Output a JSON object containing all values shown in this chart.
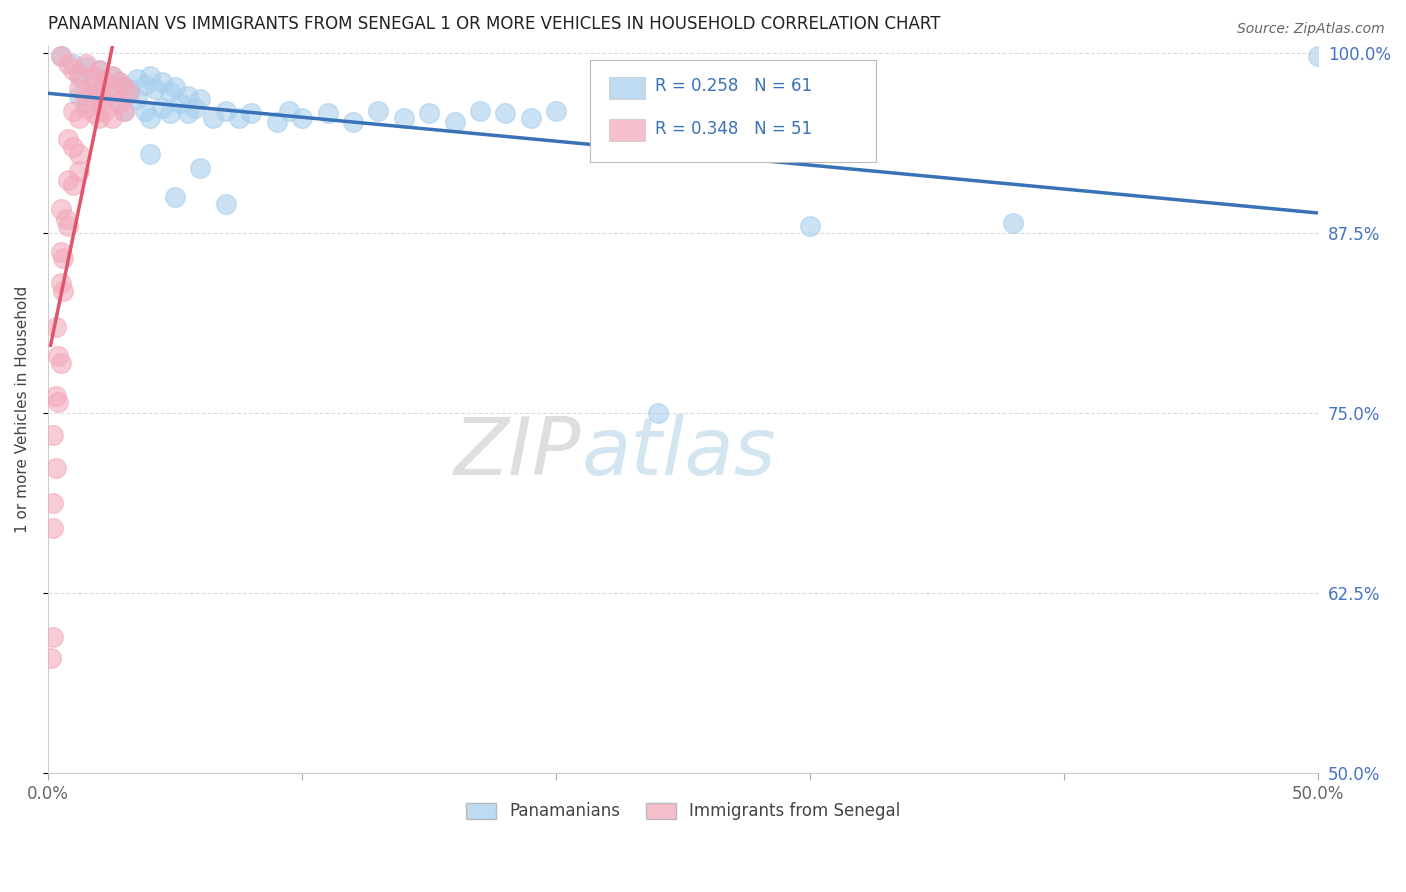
{
  "title": "PANAMANIAN VS IMMIGRANTS FROM SENEGAL 1 OR MORE VEHICLES IN HOUSEHOLD CORRELATION CHART",
  "source": "Source: ZipAtlas.com",
  "ylabel": "1 or more Vehicles in Household",
  "xmin": 0.0,
  "xmax": 0.5,
  "ymin": 0.5,
  "ymax": 1.005,
  "xticks": [
    0.0,
    0.1,
    0.2,
    0.3,
    0.4,
    0.5
  ],
  "xtick_labels": [
    "0.0%",
    "",
    "",
    "",
    "",
    "50.0%"
  ],
  "ytick_labels_right": [
    "100.0%",
    "87.5%",
    "75.0%",
    "62.5%",
    "50.0%"
  ],
  "yticks_right": [
    1.0,
    0.875,
    0.75,
    0.625,
    0.5
  ],
  "legend_blue_r": "R = 0.258",
  "legend_blue_n": "N = 61",
  "legend_pink_r": "R = 0.348",
  "legend_pink_n": "N = 51",
  "legend_label_blue": "Panamanians",
  "legend_label_pink": "Immigrants from Senegal",
  "blue_color": "#A8CFEE",
  "pink_color": "#F4AABB",
  "trendline_blue_color": "#3A72B8",
  "trendline_pink_color": "#E0556A",
  "watermark_zip": "ZIP",
  "watermark_atlas": "atlas",
  "blue_scatter": [
    [
      0.005,
      0.998
    ],
    [
      0.01,
      0.992
    ],
    [
      0.012,
      0.985
    ],
    [
      0.015,
      0.99
    ],
    [
      0.018,
      0.982
    ],
    [
      0.02,
      0.988
    ],
    [
      0.022,
      0.978
    ],
    [
      0.025,
      0.984
    ],
    [
      0.028,
      0.98
    ],
    [
      0.03,
      0.976
    ],
    [
      0.032,
      0.975
    ],
    [
      0.035,
      0.982
    ],
    [
      0.038,
      0.978
    ],
    [
      0.04,
      0.984
    ],
    [
      0.042,
      0.975
    ],
    [
      0.045,
      0.98
    ],
    [
      0.048,
      0.973
    ],
    [
      0.05,
      0.976
    ],
    [
      0.055,
      0.97
    ],
    [
      0.06,
      0.968
    ],
    [
      0.012,
      0.97
    ],
    [
      0.015,
      0.965
    ],
    [
      0.018,
      0.972
    ],
    [
      0.02,
      0.968
    ],
    [
      0.025,
      0.975
    ],
    [
      0.028,
      0.965
    ],
    [
      0.03,
      0.96
    ],
    [
      0.032,
      0.972
    ],
    [
      0.035,
      0.968
    ],
    [
      0.038,
      0.96
    ],
    [
      0.04,
      0.955
    ],
    [
      0.045,
      0.962
    ],
    [
      0.048,
      0.958
    ],
    [
      0.052,
      0.965
    ],
    [
      0.055,
      0.958
    ],
    [
      0.058,
      0.962
    ],
    [
      0.065,
      0.955
    ],
    [
      0.07,
      0.96
    ],
    [
      0.075,
      0.955
    ],
    [
      0.08,
      0.958
    ],
    [
      0.09,
      0.952
    ],
    [
      0.095,
      0.96
    ],
    [
      0.1,
      0.955
    ],
    [
      0.11,
      0.958
    ],
    [
      0.12,
      0.952
    ],
    [
      0.13,
      0.96
    ],
    [
      0.14,
      0.955
    ],
    [
      0.15,
      0.958
    ],
    [
      0.16,
      0.952
    ],
    [
      0.17,
      0.96
    ],
    [
      0.18,
      0.958
    ],
    [
      0.19,
      0.955
    ],
    [
      0.2,
      0.96
    ],
    [
      0.04,
      0.93
    ],
    [
      0.06,
      0.92
    ],
    [
      0.05,
      0.9
    ],
    [
      0.07,
      0.895
    ],
    [
      0.3,
      0.88
    ],
    [
      0.38,
      0.882
    ],
    [
      0.24,
      0.75
    ],
    [
      0.5,
      0.998
    ]
  ],
  "pink_scatter": [
    [
      0.005,
      0.998
    ],
    [
      0.008,
      0.992
    ],
    [
      0.01,
      0.988
    ],
    [
      0.012,
      0.984
    ],
    [
      0.015,
      0.992
    ],
    [
      0.018,
      0.984
    ],
    [
      0.02,
      0.988
    ],
    [
      0.022,
      0.98
    ],
    [
      0.025,
      0.984
    ],
    [
      0.028,
      0.98
    ],
    [
      0.03,
      0.976
    ],
    [
      0.032,
      0.972
    ],
    [
      0.012,
      0.975
    ],
    [
      0.015,
      0.97
    ],
    [
      0.018,
      0.976
    ],
    [
      0.02,
      0.972
    ],
    [
      0.022,
      0.968
    ],
    [
      0.025,
      0.972
    ],
    [
      0.028,
      0.965
    ],
    [
      0.03,
      0.96
    ],
    [
      0.01,
      0.96
    ],
    [
      0.012,
      0.955
    ],
    [
      0.015,
      0.962
    ],
    [
      0.018,
      0.958
    ],
    [
      0.02,
      0.955
    ],
    [
      0.022,
      0.96
    ],
    [
      0.025,
      0.955
    ],
    [
      0.008,
      0.94
    ],
    [
      0.01,
      0.935
    ],
    [
      0.012,
      0.93
    ],
    [
      0.008,
      0.912
    ],
    [
      0.01,
      0.908
    ],
    [
      0.012,
      0.918
    ],
    [
      0.005,
      0.892
    ],
    [
      0.007,
      0.885
    ],
    [
      0.008,
      0.88
    ],
    [
      0.005,
      0.862
    ],
    [
      0.006,
      0.858
    ],
    [
      0.005,
      0.84
    ],
    [
      0.006,
      0.835
    ],
    [
      0.003,
      0.81
    ],
    [
      0.004,
      0.79
    ],
    [
      0.005,
      0.785
    ],
    [
      0.003,
      0.762
    ],
    [
      0.004,
      0.758
    ],
    [
      0.002,
      0.735
    ],
    [
      0.003,
      0.712
    ],
    [
      0.002,
      0.688
    ],
    [
      0.002,
      0.67
    ],
    [
      0.002,
      0.595
    ],
    [
      0.001,
      0.58
    ]
  ]
}
